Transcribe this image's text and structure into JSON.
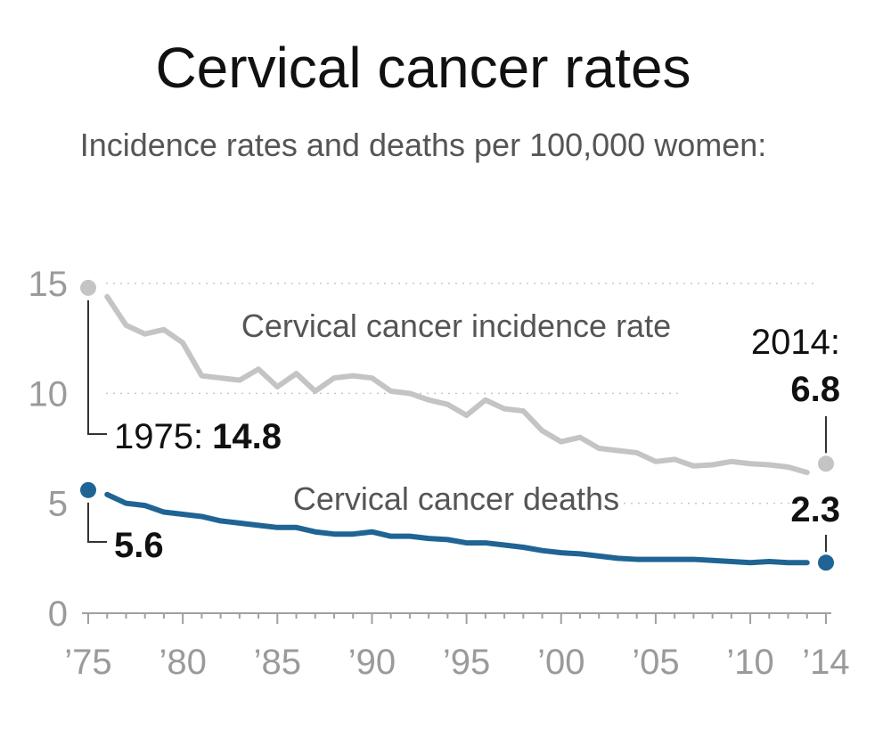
{
  "chart_data": {
    "type": "line",
    "title": "Cervical cancer rates",
    "subtitle": "Incidence rates and deaths per 100,000 women:",
    "xlabel": "",
    "ylabel": "",
    "xlim": [
      1975,
      2014
    ],
    "ylim": [
      0,
      15
    ],
    "grid": true,
    "x_ticks": [
      1975,
      1980,
      1985,
      1990,
      1995,
      2000,
      2005,
      2010,
      2014
    ],
    "x_tick_labels": [
      "’75",
      "’80",
      "’85",
      "’90",
      "’95",
      "’00",
      "’05",
      "’10",
      "’14"
    ],
    "y_ticks": [
      0,
      5,
      10,
      15
    ],
    "y_tick_labels": [
      "0",
      "5",
      "10",
      "15"
    ],
    "x": [
      1975,
      1976,
      1977,
      1978,
      1979,
      1980,
      1981,
      1982,
      1983,
      1984,
      1985,
      1986,
      1987,
      1988,
      1989,
      1990,
      1991,
      1992,
      1993,
      1994,
      1995,
      1996,
      1997,
      1998,
      1999,
      2000,
      2001,
      2002,
      2003,
      2004,
      2005,
      2006,
      2007,
      2008,
      2009,
      2010,
      2011,
      2012,
      2013,
      2014
    ],
    "series": [
      {
        "name": "Cervical cancer incidence rate",
        "color": "#c4c4c4",
        "values": [
          14.8,
          14.4,
          13.1,
          12.7,
          12.9,
          12.3,
          10.8,
          10.7,
          10.6,
          11.1,
          10.3,
          10.9,
          10.1,
          10.7,
          10.8,
          10.7,
          10.1,
          10.0,
          9.7,
          9.5,
          9.0,
          9.7,
          9.3,
          9.2,
          8.3,
          7.8,
          8.0,
          7.5,
          7.4,
          7.3,
          6.9,
          7.0,
          6.7,
          6.75,
          6.9,
          6.8,
          6.75,
          6.65,
          6.4,
          6.8
        ]
      },
      {
        "name": "Cervical cancer deaths",
        "color": "#1f6494",
        "values": [
          5.6,
          5.4,
          5.0,
          4.9,
          4.6,
          4.5,
          4.4,
          4.2,
          4.1,
          4.0,
          3.9,
          3.9,
          3.7,
          3.6,
          3.6,
          3.7,
          3.5,
          3.5,
          3.4,
          3.35,
          3.2,
          3.2,
          3.1,
          3.0,
          2.85,
          2.75,
          2.7,
          2.6,
          2.5,
          2.45,
          2.45,
          2.45,
          2.45,
          2.4,
          2.35,
          2.3,
          2.35,
          2.3,
          2.3,
          2.3
        ]
      }
    ],
    "annotations": {
      "incidence_start_label": "1975:",
      "incidence_start_value": "14.8",
      "deaths_start_value": "5.6",
      "incidence_end_label": "2014:",
      "incidence_end_value": "6.8",
      "deaths_end_value": "2.3"
    }
  }
}
